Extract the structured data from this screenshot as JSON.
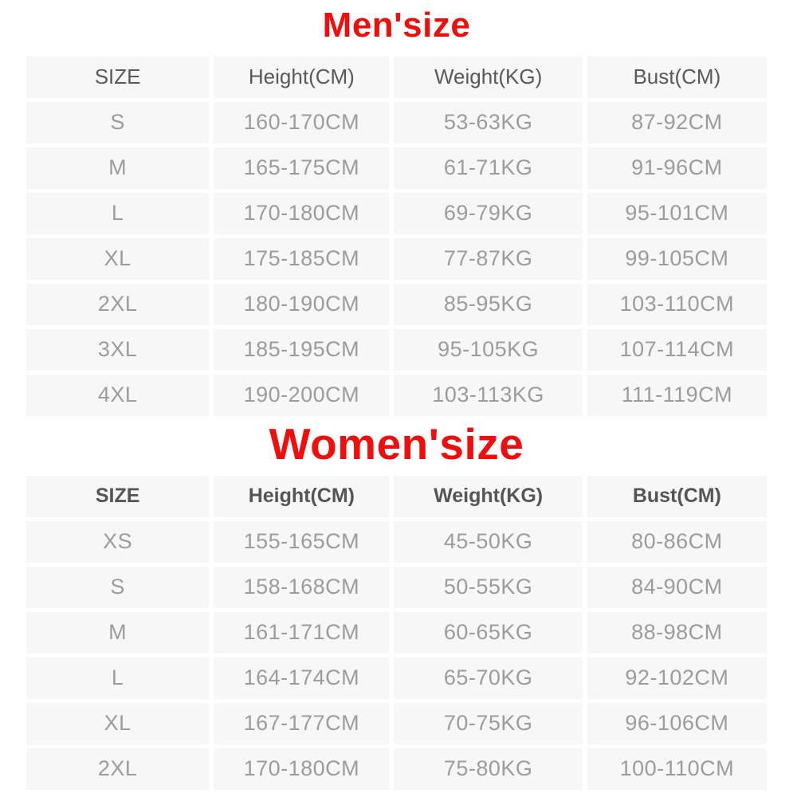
{
  "colors": {
    "title_red": "#f20d0d",
    "cell_background": "#f7f7f8",
    "header_text": "#595959",
    "value_text": "#9c9c9c",
    "page_background": "#ffffff"
  },
  "tables": [
    {
      "title": "Men'size",
      "columns": [
        "SIZE",
        "Height(CM)",
        "Weight(KG)",
        "Bust(CM)"
      ],
      "rows": [
        [
          "S",
          "160-170CM",
          "53-63KG",
          "87-92CM"
        ],
        [
          "M",
          "165-175CM",
          "61-71KG",
          "91-96CM"
        ],
        [
          "L",
          "170-180CM",
          "69-79KG",
          "95-101CM"
        ],
        [
          "XL",
          "175-185CM",
          "77-87KG",
          "99-105CM"
        ],
        [
          "2XL",
          "180-190CM",
          "85-95KG",
          "103-110CM"
        ],
        [
          "3XL",
          "185-195CM",
          "95-105KG",
          "107-114CM"
        ],
        [
          "4XL",
          "190-200CM",
          "103-113KG",
          "111-119CM"
        ]
      ]
    },
    {
      "title": "Women'size",
      "columns": [
        "SIZE",
        "Height(CM)",
        "Weight(KG)",
        "Bust(CM)"
      ],
      "rows": [
        [
          "XS",
          "155-165CM",
          "45-50KG",
          "80-86CM"
        ],
        [
          "S",
          "158-168CM",
          "50-55KG",
          "84-90CM"
        ],
        [
          "M",
          "161-171CM",
          "60-65KG",
          "88-98CM"
        ],
        [
          "L",
          "164-174CM",
          "65-70KG",
          "92-102CM"
        ],
        [
          "XL",
          "167-177CM",
          "70-75KG",
          "96-106CM"
        ],
        [
          "2XL",
          "170-180CM",
          "75-80KG",
          "100-110CM"
        ]
      ]
    }
  ]
}
